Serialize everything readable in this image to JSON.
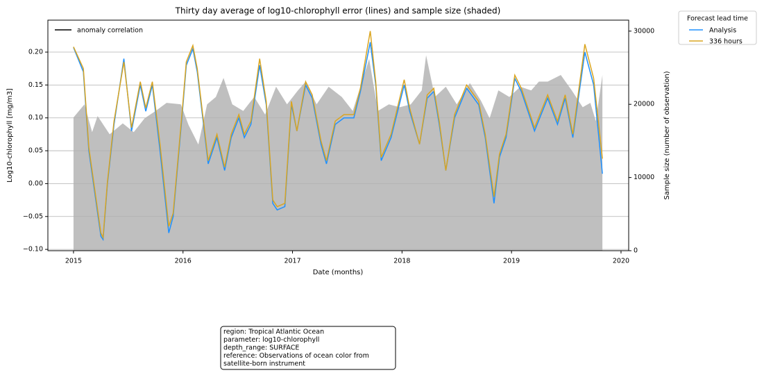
{
  "chart_data": {
    "type": "line",
    "title": "Thirty day average of log10-chlorophyll error (lines) and sample size (shaded)",
    "xlabel": "Date (months)",
    "ylabel": "Log10-chlorophyll [mg/m3]",
    "y2label": "Sample size (number of observation)",
    "x": [
      2015.0,
      2015.09,
      2015.14,
      2015.25,
      2015.27,
      2015.31,
      2015.37,
      2015.46,
      2015.53,
      2015.61,
      2015.66,
      2015.72,
      2015.79,
      2015.87,
      2015.91,
      2015.99,
      2016.03,
      2016.09,
      2016.13,
      2016.23,
      2016.31,
      2016.38,
      2016.44,
      2016.51,
      2016.56,
      2016.62,
      2016.7,
      2016.76,
      2016.82,
      2016.86,
      2016.93,
      2016.99,
      2017.04,
      2017.12,
      2017.18,
      2017.26,
      2017.31,
      2017.39,
      2017.47,
      2017.56,
      2017.62,
      2017.71,
      2017.76,
      2017.81,
      2017.9,
      2018.02,
      2018.07,
      2018.16,
      2018.23,
      2018.29,
      2018.34,
      2018.4,
      2018.48,
      2018.59,
      2018.7,
      2018.76,
      2018.84,
      2018.89,
      2018.95,
      2019.03,
      2019.09,
      2019.21,
      2019.33,
      2019.42,
      2019.49,
      2019.56,
      2019.67,
      2019.75,
      2019.83
    ],
    "series": [
      {
        "name": "Analysis",
        "color": "#1e90ff",
        "values": [
          0.207,
          0.17,
          0.05,
          -0.08,
          -0.085,
          0.0,
          0.09,
          0.19,
          0.08,
          0.15,
          0.11,
          0.15,
          0.05,
          -0.075,
          -0.05,
          0.1,
          0.18,
          0.205,
          0.17,
          0.03,
          0.07,
          0.02,
          0.07,
          0.1,
          0.07,
          0.09,
          0.18,
          0.12,
          -0.03,
          -0.04,
          -0.035,
          0.12,
          0.08,
          0.15,
          0.13,
          0.06,
          0.03,
          0.09,
          0.1,
          0.1,
          0.14,
          0.215,
          0.15,
          0.035,
          0.07,
          0.15,
          0.11,
          0.06,
          0.13,
          0.14,
          0.09,
          0.02,
          0.1,
          0.145,
          0.12,
          0.07,
          -0.03,
          0.04,
          0.07,
          0.16,
          0.14,
          0.08,
          0.13,
          0.09,
          0.13,
          0.07,
          0.2,
          0.15,
          0.015
        ]
      },
      {
        "name": "336 hours",
        "color": "#daa520",
        "values": [
          0.208,
          0.175,
          0.055,
          -0.075,
          -0.082,
          0.003,
          0.095,
          0.185,
          0.085,
          0.155,
          0.115,
          0.155,
          0.06,
          -0.065,
          -0.045,
          0.105,
          0.185,
          0.21,
          0.175,
          0.035,
          0.075,
          0.025,
          0.075,
          0.105,
          0.075,
          0.095,
          0.19,
          0.125,
          -0.025,
          -0.035,
          -0.03,
          0.125,
          0.08,
          0.155,
          0.135,
          0.065,
          0.035,
          0.095,
          0.105,
          0.105,
          0.145,
          0.232,
          0.155,
          0.04,
          0.075,
          0.158,
          0.115,
          0.06,
          0.135,
          0.145,
          0.095,
          0.02,
          0.105,
          0.15,
          0.125,
          0.075,
          -0.02,
          0.045,
          0.075,
          0.165,
          0.145,
          0.085,
          0.135,
          0.095,
          0.135,
          0.075,
          0.212,
          0.16,
          0.038
        ]
      }
    ],
    "shaded": {
      "axis": "y2",
      "color": "#bfbfbf",
      "x": [
        2015.0,
        2015.1,
        2015.17,
        2015.22,
        2015.33,
        2015.45,
        2015.55,
        2015.65,
        2015.75,
        2015.85,
        2015.98,
        2016.05,
        2016.14,
        2016.22,
        2016.3,
        2016.37,
        2016.45,
        2016.55,
        2016.65,
        2016.75,
        2016.85,
        2016.95,
        2017.05,
        2017.12,
        2017.22,
        2017.33,
        2017.45,
        2017.55,
        2017.62,
        2017.7,
        2017.78,
        2017.88,
        2017.98,
        2018.08,
        2018.18,
        2018.22,
        2018.3,
        2018.4,
        2018.5,
        2018.62,
        2018.72,
        2018.8,
        2018.88,
        2018.98,
        2019.08,
        2019.18,
        2019.25,
        2019.33,
        2019.45,
        2019.55,
        2019.65,
        2019.72,
        2019.77,
        2019.83
      ],
      "values": [
        18200,
        20000,
        16200,
        18400,
        15900,
        17400,
        16200,
        18100,
        19100,
        20200,
        20000,
        17200,
        14500,
        20000,
        21000,
        23600,
        20000,
        19100,
        21000,
        18600,
        22400,
        20000,
        21900,
        23100,
        20000,
        22400,
        21000,
        19100,
        22400,
        26200,
        19100,
        20000,
        19600,
        20000,
        21900,
        26700,
        21000,
        22400,
        20000,
        22900,
        20500,
        18100,
        21900,
        21000,
        22400,
        21900,
        23100,
        23100,
        24000,
        21900,
        19600,
        20200,
        17700,
        24000
      ]
    },
    "xlim": [
      2014.766,
      2020.07
    ],
    "xticks": [
      2015,
      2016,
      2017,
      2018,
      2019,
      2020
    ],
    "ylim": [
      -0.102,
      0.2486
    ],
    "yticks": [
      {
        "value": -0.1,
        "label": "−0.10"
      },
      {
        "value": -0.05,
        "label": "−0.05"
      },
      {
        "value": 0,
        "label": "0.00"
      },
      {
        "value": 0.05,
        "label": "0.05"
      },
      {
        "value": 0.1,
        "label": "0.10"
      },
      {
        "value": 0.15,
        "label": "0.15"
      },
      {
        "value": 0.2,
        "label": "0.20"
      }
    ],
    "y2lim": [
      0,
      31500
    ],
    "y2ticks": [
      0,
      10000,
      20000,
      30000
    ],
    "grid": true,
    "legend": {
      "title": "Forecast lead time",
      "loc": "outside right"
    },
    "extra_legend": {
      "label": "anomaly correlation",
      "color": "#000000",
      "loc": "upper left"
    },
    "info_box": [
      "region: Tropical Atlantic Ocean",
      "parameter: log10-chlorophyll",
      "depth_range: SURFACE",
      "reference: Observations of ocean color from",
      "satellite-born instrument"
    ]
  }
}
